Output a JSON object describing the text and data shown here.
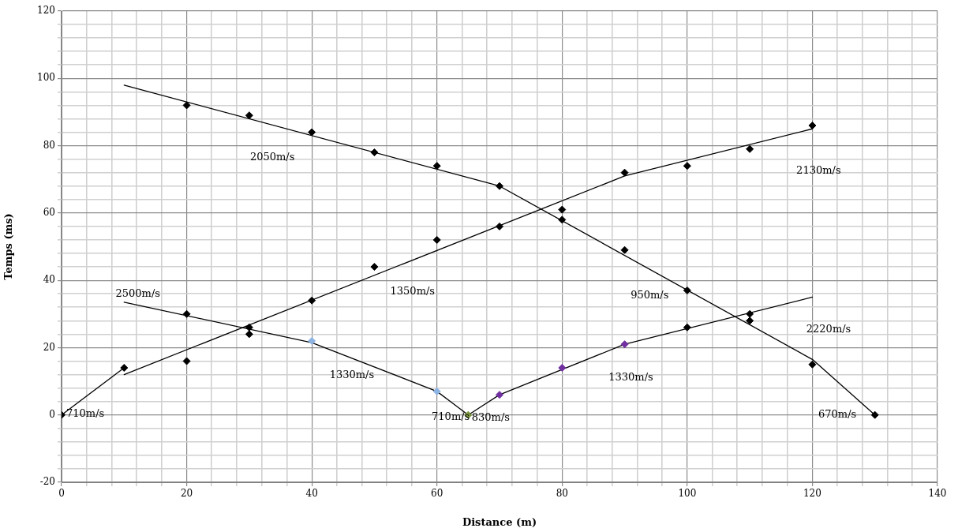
{
  "chart_data": {
    "type": "scatter",
    "xlabel": "Distance (m)",
    "ylabel": "Temps (ms)",
    "xlim": [
      0,
      140
    ],
    "ylim": [
      -20,
      120
    ],
    "xticks": [
      0,
      {
        "value": 4,
        "label": null
      },
      {
        "value": 8,
        "label": null
      },
      {
        "value": 12,
        "label": null
      },
      {
        "value": 16,
        "label": null
      },
      20,
      {
        "value": 24,
        "label": null
      },
      {
        "value": 28,
        "label": null
      },
      {
        "value": 32,
        "label": null
      },
      {
        "value": 36,
        "label": null
      },
      40,
      {
        "value": 44,
        "label": null
      },
      {
        "value": 48,
        "label": null
      },
      {
        "value": 52,
        "label": null
      },
      {
        "value": 56,
        "label": null
      },
      60,
      {
        "value": 64,
        "label": null
      },
      {
        "value": 68,
        "label": null
      },
      {
        "value": 72,
        "label": null
      },
      {
        "value": 76,
        "label": null
      },
      80,
      {
        "value": 84,
        "label": null
      },
      {
        "value": 88,
        "label": null
      },
      {
        "value": 92,
        "label": null
      },
      {
        "value": 96,
        "label": null
      },
      100,
      {
        "value": 104,
        "label": null
      },
      {
        "value": 108,
        "label": null
      },
      {
        "value": 112,
        "label": null
      },
      {
        "value": 116,
        "label": null
      },
      120,
      {
        "value": 124,
        "label": null
      },
      {
        "value": 128,
        "label": null
      },
      {
        "value": 132,
        "label": null
      },
      {
        "value": 136,
        "label": null
      },
      140
    ],
    "yticks": [
      -20,
      {
        "value": -16,
        "label": null
      },
      {
        "value": -12,
        "label": null
      },
      {
        "value": -8,
        "label": null
      },
      {
        "value": -4,
        "label": null
      },
      0,
      {
        "value": 4,
        "label": null
      },
      {
        "value": 8,
        "label": null
      },
      {
        "value": 12,
        "label": null
      },
      {
        "value": 16,
        "label": null
      },
      20,
      {
        "value": 24,
        "label": null
      },
      {
        "value": 28,
        "label": null
      },
      {
        "value": 32,
        "label": null
      },
      {
        "value": 36,
        "label": null
      },
      40,
      {
        "value": 44,
        "label": null
      },
      {
        "value": 48,
        "label": null
      },
      {
        "value": 52,
        "label": null
      },
      {
        "value": 56,
        "label": null
      },
      60,
      {
        "value": 64,
        "label": null
      },
      {
        "value": 68,
        "label": null
      },
      {
        "value": 72,
        "label": null
      },
      {
        "value": 76,
        "label": null
      },
      80,
      {
        "value": 84,
        "label": null
      },
      {
        "value": 88,
        "label": null
      },
      {
        "value": 92,
        "label": null
      },
      {
        "value": 96,
        "label": null
      },
      100,
      {
        "value": 104,
        "label": null
      },
      {
        "value": 108,
        "label": null
      },
      {
        "value": 112,
        "label": null
      },
      {
        "value": 116,
        "label": null
      },
      120
    ],
    "grid": true,
    "legend": false,
    "marker": "diamond",
    "series": [
      {
        "color": "#000000",
        "x": [
          0,
          10,
          20,
          20,
          20,
          30,
          30,
          30,
          40,
          40,
          50,
          50,
          60,
          60,
          70,
          70,
          80,
          80,
          90,
          90,
          100,
          100,
          100,
          110,
          110,
          110,
          120,
          120,
          130
        ],
        "values": [
          0,
          14,
          92,
          30,
          16,
          89,
          26,
          24,
          84,
          34,
          78,
          44,
          74,
          52,
          68,
          56,
          61,
          58,
          72,
          49,
          74,
          37,
          26,
          79,
          30,
          28,
          86,
          15,
          0
        ]
      },
      {
        "color": "#8eb4e3",
        "x": [
          40,
          60
        ],
        "values": [
          22,
          7
        ]
      },
      {
        "color": "#77933c",
        "x": [
          65
        ],
        "values": [
          0
        ]
      },
      {
        "color": "#7030a0",
        "x": [
          70,
          80,
          90
        ],
        "values": [
          6,
          14,
          21
        ]
      },
      {
        "type": "line",
        "color": "#000000",
        "marker": "none",
        "x": [
          10,
          70,
          120,
          130
        ],
        "values": [
          98,
          68,
          16.5,
          0
        ]
      },
      {
        "type": "line",
        "color": "#000000",
        "marker": "none",
        "x": [
          10,
          90,
          120
        ],
        "values": [
          12,
          71,
          85
        ]
      },
      {
        "type": "line",
        "color": "#000000",
        "marker": "none",
        "x": [
          0,
          10
        ],
        "values": [
          0,
          14
        ]
      },
      {
        "type": "line",
        "color": "#000000",
        "marker": "none",
        "x": [
          10,
          40,
          60,
          65
        ],
        "values": [
          33.5,
          21.5,
          7,
          0
        ]
      },
      {
        "type": "line",
        "color": "#000000",
        "marker": "none",
        "x": [
          65,
          70,
          90,
          120
        ],
        "values": [
          0,
          6,
          21,
          35
        ]
      }
    ],
    "annotations": [
      "2050m/s",
      "2500m/s",
      "1350m/s",
      "950m/s",
      "2130m/s",
      "2220m/s",
      "1330m/s",
      "1330m/s",
      "710m/s",
      "710m/s",
      "830m/s",
      "670m/s"
    ]
  }
}
